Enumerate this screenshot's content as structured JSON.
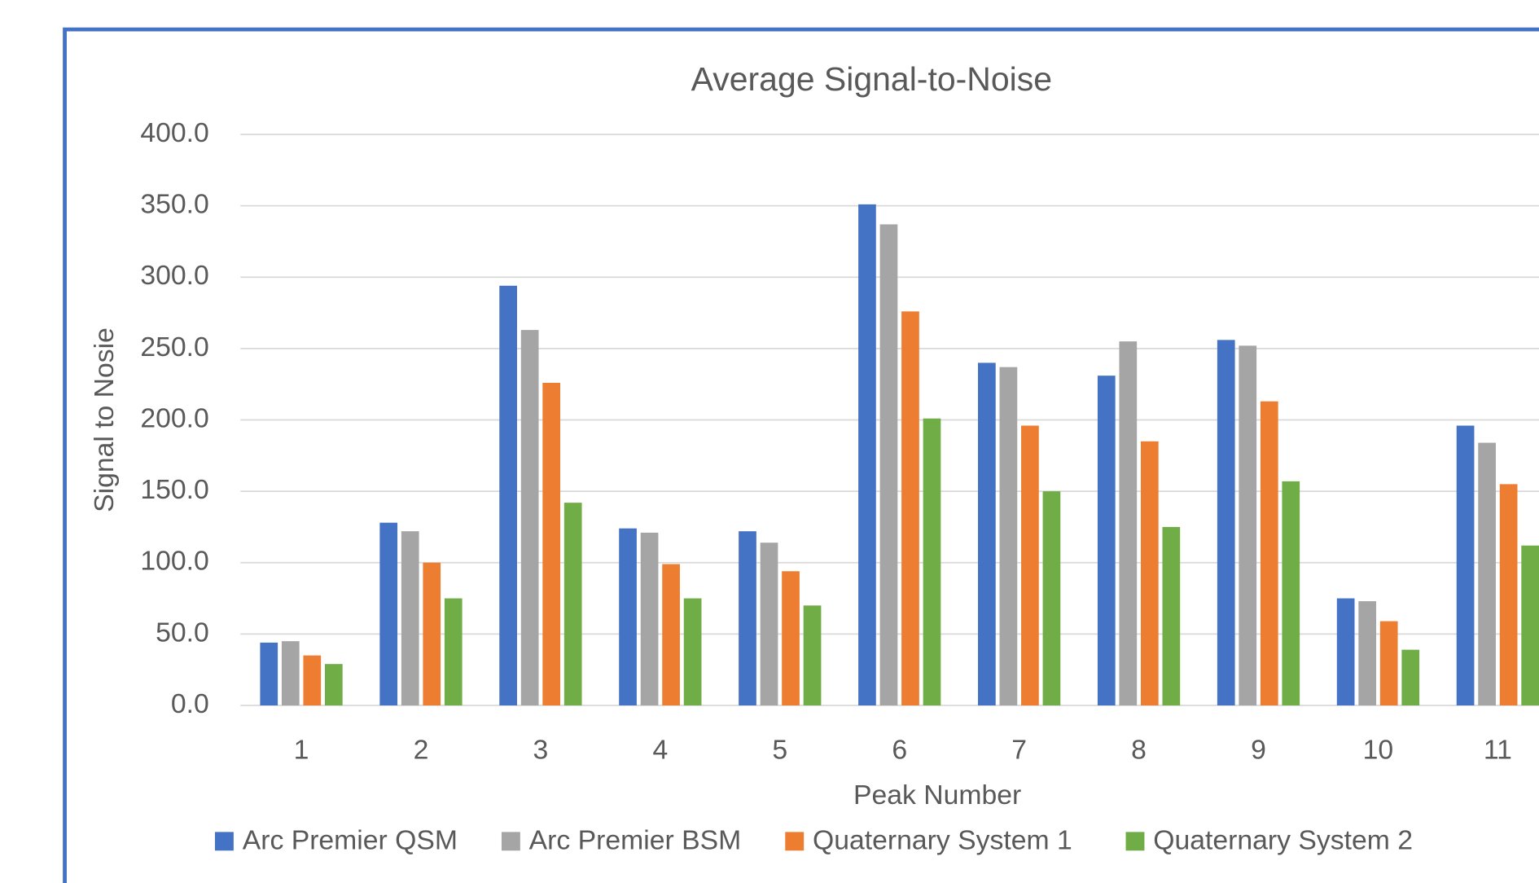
{
  "chart_data": {
    "type": "bar",
    "title": "Average Signal-to-Noise",
    "x_label": "Peak Number",
    "y_label": "Signal to Nosie",
    "categories": [
      "1",
      "2",
      "3",
      "4",
      "5",
      "6",
      "7",
      "8",
      "9",
      "10",
      "11"
    ],
    "series": [
      {
        "name": "Arc Premier QSM",
        "color": "#4472c4",
        "values": [
          44,
          128,
          294,
          124,
          122,
          351,
          240,
          231,
          256,
          75,
          196
        ]
      },
      {
        "name": "Arc Premier BSM",
        "color": "#a5a5a5",
        "values": [
          45,
          122,
          263,
          121,
          114,
          337,
          237,
          255,
          252,
          73,
          184
        ]
      },
      {
        "name": "Quaternary System 1",
        "color": "#ed7d31",
        "values": [
          35,
          100,
          226,
          99,
          94,
          276,
          196,
          185,
          213,
          59,
          155
        ]
      },
      {
        "name": "Quaternary System 2",
        "color": "#70ad47",
        "values": [
          29,
          75,
          142,
          75,
          70,
          201,
          150,
          125,
          157,
          39,
          112
        ]
      }
    ],
    "ylim": [
      0,
      400
    ],
    "yticks": [
      {
        "value": 0,
        "label": "0.0"
      },
      {
        "value": 50,
        "label": "50.0"
      },
      {
        "value": 100,
        "label": "100.0"
      },
      {
        "value": 150,
        "label": "150.0"
      },
      {
        "value": 200,
        "label": "200.0"
      },
      {
        "value": 250,
        "label": "250.0"
      },
      {
        "value": 300,
        "label": "300.0"
      },
      {
        "value": 350,
        "label": "350.0"
      },
      {
        "value": 400,
        "label": "400.0"
      }
    ],
    "grid": true
  }
}
